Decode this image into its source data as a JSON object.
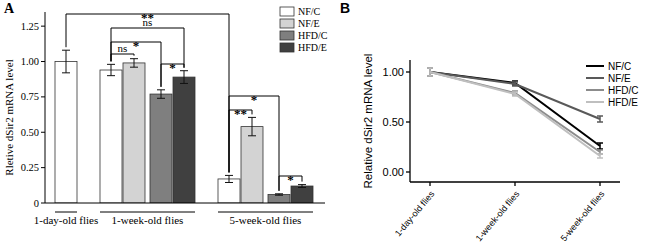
{
  "chart_data": [
    {
      "type": "bar",
      "title": "A",
      "y_label": "Rletive dSir2 mRNA level",
      "categories": [
        "1-day-old flies",
        "1-week-old flies",
        "5-week-old flies"
      ],
      "series": [
        {
          "name": "NF/C",
          "color": "#ffffff",
          "values": [
            1.0,
            0.94,
            0.17
          ],
          "errors": [
            0.08,
            0.04,
            0.025
          ]
        },
        {
          "name": "NF/E",
          "color": "#d3d3d3",
          "values": [
            null,
            0.99,
            0.54
          ],
          "errors": [
            null,
            0.03,
            0.065
          ]
        },
        {
          "name": "HFD/C",
          "color": "#7f7f7f",
          "values": [
            null,
            0.77,
            0.06
          ],
          "errors": [
            null,
            0.03,
            0.005
          ]
        },
        {
          "name": "HFD/E",
          "color": "#404040",
          "values": [
            null,
            0.89,
            0.12
          ],
          "errors": [
            null,
            0.045,
            0.01
          ]
        }
      ],
      "ylim": [
        0,
        1.35
      ],
      "yticks": [
        0,
        0.25,
        {
          "value": 0.5,
          "label": "0.50"
        },
        0.75,
        {
          "value": 1,
          "label": "1.00"
        },
        1.25
      ],
      "grid": false,
      "legend": "upper right",
      "annotations": [
        {
          "text": "**",
          "from": {
            "category": "1-day-old flies",
            "series": "NF/C"
          },
          "to": {
            "category": "5-week-old flies",
            "series": "NF/C"
          }
        },
        {
          "text": "ns",
          "from": {
            "category": "1-week-old flies",
            "series": "NF/C"
          },
          "to": {
            "category": "1-week-old flies",
            "series": "HFD/E"
          }
        },
        {
          "text": "*",
          "from": {
            "category": "1-week-old flies",
            "series": "NF/C"
          },
          "to": {
            "category": "1-week-old flies",
            "series": "HFD/C"
          }
        },
        {
          "text": "ns",
          "from": {
            "category": "1-week-old flies",
            "series": "NF/C"
          },
          "to": {
            "category": "1-week-old flies",
            "series": "NF/E"
          }
        },
        {
          "text": "*",
          "from": {
            "category": "1-week-old flies",
            "series": "HFD/C"
          },
          "to": {
            "category": "1-week-old flies",
            "series": "HFD/E"
          }
        },
        {
          "text": "**",
          "from": {
            "category": "5-week-old flies",
            "series": "NF/C"
          },
          "to": {
            "category": "5-week-old flies",
            "series": "NF/E"
          }
        },
        {
          "text": "*",
          "from": {
            "category": "5-week-old flies",
            "series": "HFD/C"
          },
          "to": {
            "category": "5-week-old flies",
            "series": "HFD/E"
          }
        },
        {
          "text": "*",
          "from": {
            "category": "5-week-old flies",
            "series": "NF/C"
          },
          "to": {
            "category": "5-week-old flies",
            "series": "HFD/C"
          }
        }
      ]
    },
    {
      "type": "line",
      "title": "B",
      "y_label": "Relative dSir2 mRNA level",
      "categories": [
        "1-day-old flies",
        "1-week-old flies",
        "5-week-old flies"
      ],
      "series": [
        {
          "name": "NF/C",
          "color": "#000000",
          "values": [
            1.0,
            0.89,
            0.26
          ],
          "errors": [
            0.04,
            0.02,
            0.03
          ]
        },
        {
          "name": "NF/E",
          "color": "#595959",
          "values": [
            1.0,
            0.88,
            0.53
          ],
          "errors": [
            0.04,
            0.02,
            0.03
          ]
        },
        {
          "name": "HFD/C",
          "color": "#8c8c8c",
          "values": [
            1.0,
            0.79,
            0.2
          ],
          "errors": [
            0.04,
            0.02,
            0.02
          ]
        },
        {
          "name": "HFD/E",
          "color": "#bfbfbf",
          "values": [
            1.0,
            0.78,
            0.16
          ],
          "errors": [
            0.04,
            0.02,
            0.02
          ]
        }
      ],
      "ylim": [
        -0.1,
        1.12
      ],
      "yticks": [
        {
          "value": 0,
          "label": "0.00"
        },
        {
          "value": 0.5,
          "label": "0.50"
        },
        {
          "value": 1,
          "label": "1.00"
        }
      ],
      "grid": false,
      "legend": "upper right"
    }
  ]
}
